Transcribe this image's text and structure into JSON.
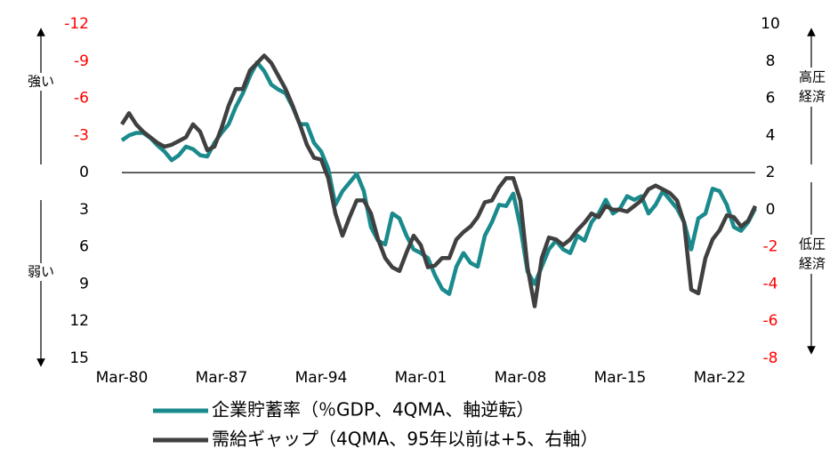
{
  "chart_data": {
    "type": "line",
    "x": [
      "Mar-80",
      "Sep-80",
      "Mar-81",
      "Sep-81",
      "Mar-82",
      "Sep-82",
      "Mar-83",
      "Sep-83",
      "Mar-84",
      "Sep-84",
      "Mar-85",
      "Sep-85",
      "Mar-86",
      "Sep-86",
      "Mar-87",
      "Sep-87",
      "Mar-88",
      "Sep-88",
      "Mar-89",
      "Sep-89",
      "Mar-90",
      "Sep-90",
      "Mar-91",
      "Sep-91",
      "Mar-92",
      "Sep-92",
      "Mar-93",
      "Sep-93",
      "Mar-94",
      "Sep-94",
      "Mar-95",
      "Sep-95",
      "Mar-96",
      "Sep-96",
      "Mar-97",
      "Sep-97",
      "Mar-98",
      "Sep-98",
      "Mar-99",
      "Sep-99",
      "Mar-00",
      "Sep-00",
      "Mar-01",
      "Sep-01",
      "Mar-02",
      "Sep-02",
      "Mar-03",
      "Sep-03",
      "Mar-04",
      "Sep-04",
      "Mar-05",
      "Sep-05",
      "Mar-06",
      "Sep-06",
      "Mar-07",
      "Sep-07",
      "Mar-08",
      "Sep-08",
      "Mar-09",
      "Sep-09",
      "Mar-10",
      "Sep-10",
      "Mar-11",
      "Sep-11",
      "Mar-12",
      "Sep-12",
      "Mar-13",
      "Sep-13",
      "Mar-14",
      "Sep-14",
      "Mar-15",
      "Sep-15",
      "Mar-16",
      "Sep-16",
      "Mar-17",
      "Sep-17",
      "Mar-18",
      "Sep-18",
      "Mar-19",
      "Sep-19",
      "Mar-20",
      "Sep-20",
      "Mar-21",
      "Sep-21",
      "Mar-22",
      "Sep-22",
      "Mar-23",
      "Sep-23",
      "Mar-24",
      "Sep-24"
    ],
    "xticks": [
      "Mar-80",
      "Mar-87",
      "Mar-94",
      "Mar-01",
      "Mar-08",
      "Mar-15",
      "Mar-22"
    ],
    "series": [
      {
        "name": "企業貯蓄率（％GDP、4QMA、軸逆転）",
        "color": "#1a8a8c",
        "values": [
          -2.6,
          -3.0,
          -3.2,
          -3.2,
          -2.8,
          -2.2,
          -1.7,
          -1.0,
          -1.4,
          -2.1,
          -1.9,
          -1.4,
          -1.3,
          -2.4,
          -3.2,
          -3.9,
          -5.3,
          -6.4,
          -7.8,
          -8.9,
          -8.2,
          -7.1,
          -6.7,
          -6.4,
          -5.3,
          -3.9,
          -3.9,
          -2.4,
          -1.7,
          -0.3,
          2.6,
          1.5,
          0.8,
          0.1,
          1.5,
          4.4,
          5.5,
          5.8,
          3.3,
          3.7,
          5.1,
          6.2,
          6.5,
          6.9,
          8.3,
          9.4,
          9.8,
          7.6,
          6.5,
          7.3,
          7.6,
          5.1,
          4.0,
          2.6,
          2.7,
          1.7,
          4.4,
          8.0,
          9.0,
          7.6,
          6.2,
          5.5,
          6.2,
          6.5,
          5.1,
          5.5,
          4.0,
          3.3,
          2.2,
          3.3,
          2.9,
          1.9,
          2.2,
          1.9,
          3.3,
          2.6,
          1.5,
          2.2,
          2.9,
          4.0,
          6.2,
          3.7,
          3.3,
          1.3,
          1.5,
          2.6,
          4.4,
          4.7,
          4.0,
          2.9
        ]
      },
      {
        "name": "需給ギャップ（4QMA、95年以前は+5、右軸）",
        "color": "#404040",
        "axis": "y2",
        "values": [
          4.6,
          5.2,
          4.6,
          4.2,
          3.9,
          3.6,
          3.4,
          3.5,
          3.7,
          3.9,
          4.6,
          4.2,
          3.2,
          3.4,
          4.4,
          5.6,
          6.5,
          6.5,
          7.5,
          7.9,
          8.3,
          7.9,
          7.2,
          6.5,
          5.6,
          4.6,
          3.5,
          2.8,
          2.7,
          1.7,
          -0.2,
          -1.4,
          -0.4,
          0.5,
          0.5,
          -0.2,
          -1.6,
          -2.6,
          -3.1,
          -3.3,
          -2.3,
          -1.4,
          -1.9,
          -3.1,
          -3.0,
          -2.6,
          -2.6,
          -1.6,
          -1.2,
          -0.9,
          -0.4,
          0.4,
          0.5,
          1.2,
          1.7,
          1.7,
          0.5,
          -3.1,
          -5.2,
          -2.6,
          -1.5,
          -1.6,
          -1.9,
          -1.6,
          -1.1,
          -0.7,
          -0.2,
          -0.4,
          0.2,
          0.0,
          0.0,
          -0.1,
          0.2,
          0.5,
          1.1,
          1.3,
          1.1,
          0.9,
          0.5,
          -0.7,
          -4.3,
          -4.5,
          -2.6,
          -1.6,
          -1.1,
          -0.3,
          -0.4,
          -0.9,
          -0.6,
          0.2
        ]
      }
    ],
    "ylim": [
      15,
      -12
    ],
    "yticks": [
      -12,
      -9,
      -6,
      -3,
      0,
      3,
      6,
      9,
      12,
      15
    ],
    "y2lim": [
      -8,
      10
    ],
    "y2ticks": [
      10,
      8,
      6,
      4,
      2,
      0,
      -2,
      -4,
      -6,
      -8
    ],
    "negative_tick_color": "#ff0000",
    "zero_line": true,
    "annotations": {
      "left_top": "強い",
      "left_bottom": "弱い",
      "right_top": [
        "高圧",
        "経済"
      ],
      "right_bottom": [
        "低圧",
        "経済"
      ]
    }
  }
}
